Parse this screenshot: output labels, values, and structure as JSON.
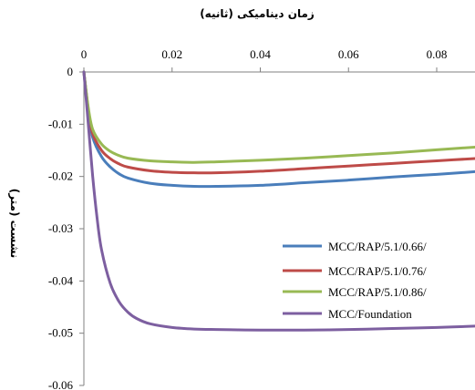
{
  "chart_data": {
    "type": "line",
    "title": "زمان دینامیکی (ثانیه)",
    "xlabel": "زمان دینامیکی (ثانیه)",
    "ylabel": "نشست (متر)",
    "x_tick_labels": [
      "0",
      "0.02",
      "0.04",
      "0.06",
      "0.08"
    ],
    "y_tick_labels": [
      "0",
      "-0.01",
      "-0.02",
      "-0.03",
      "-0.04",
      "-0.05",
      "-0.06"
    ],
    "xlim": [
      0,
      0.09
    ],
    "ylim": [
      -0.06,
      0
    ],
    "x_axis_position": "top",
    "grid": false,
    "legend_position": "right-center",
    "series": [
      {
        "name": "MCC/RAP/5.1/0.66/",
        "color": "#4a7ebb",
        "x": [
          0,
          0.001,
          0.002,
          0.004,
          0.006,
          0.008,
          0.01,
          0.015,
          0.02,
          0.025,
          0.03,
          0.04,
          0.05,
          0.06,
          0.07,
          0.08,
          0.09
        ],
        "y": [
          0,
          -0.0075,
          -0.0125,
          -0.0162,
          -0.0182,
          -0.0195,
          -0.0203,
          -0.0213,
          -0.0217,
          -0.0219,
          -0.0219,
          -0.0217,
          -0.0212,
          -0.0207,
          -0.0201,
          -0.0196,
          -0.019
        ]
      },
      {
        "name": "MCC/RAP/5.1/0.76/",
        "color": "#be4b48",
        "x": [
          0,
          0.001,
          0.002,
          0.004,
          0.006,
          0.008,
          0.01,
          0.015,
          0.02,
          0.025,
          0.03,
          0.04,
          0.05,
          0.06,
          0.07,
          0.08,
          0.09
        ],
        "y": [
          0,
          -0.0072,
          -0.0118,
          -0.015,
          -0.0166,
          -0.0176,
          -0.0182,
          -0.0189,
          -0.0192,
          -0.0193,
          -0.0193,
          -0.019,
          -0.0185,
          -0.018,
          -0.0175,
          -0.017,
          -0.0165
        ]
      },
      {
        "name": "MCC/RAP/5.1/0.86/",
        "color": "#98b954",
        "x": [
          0,
          0.001,
          0.002,
          0.004,
          0.006,
          0.008,
          0.01,
          0.015,
          0.02,
          0.025,
          0.03,
          0.04,
          0.05,
          0.06,
          0.07,
          0.08,
          0.09
        ],
        "y": [
          0,
          -0.0068,
          -0.011,
          -0.0138,
          -0.0152,
          -0.016,
          -0.0165,
          -0.017,
          -0.0172,
          -0.0173,
          -0.0172,
          -0.0169,
          -0.0165,
          -0.016,
          -0.0155,
          -0.0149,
          -0.0143
        ]
      },
      {
        "name": "MCC/Foundation",
        "color": "#7d5fa0",
        "x": [
          0,
          0.001,
          0.002,
          0.003,
          0.004,
          0.006,
          0.008,
          0.01,
          0.012,
          0.015,
          0.02,
          0.025,
          0.03,
          0.04,
          0.05,
          0.06,
          0.07,
          0.08,
          0.09
        ],
        "y": [
          0,
          -0.01,
          -0.02,
          -0.028,
          -0.034,
          -0.0405,
          -0.044,
          -0.046,
          -0.0472,
          -0.0482,
          -0.0489,
          -0.0492,
          -0.0493,
          -0.0494,
          -0.0494,
          -0.0493,
          -0.0491,
          -0.0489,
          -0.0486
        ]
      }
    ]
  }
}
